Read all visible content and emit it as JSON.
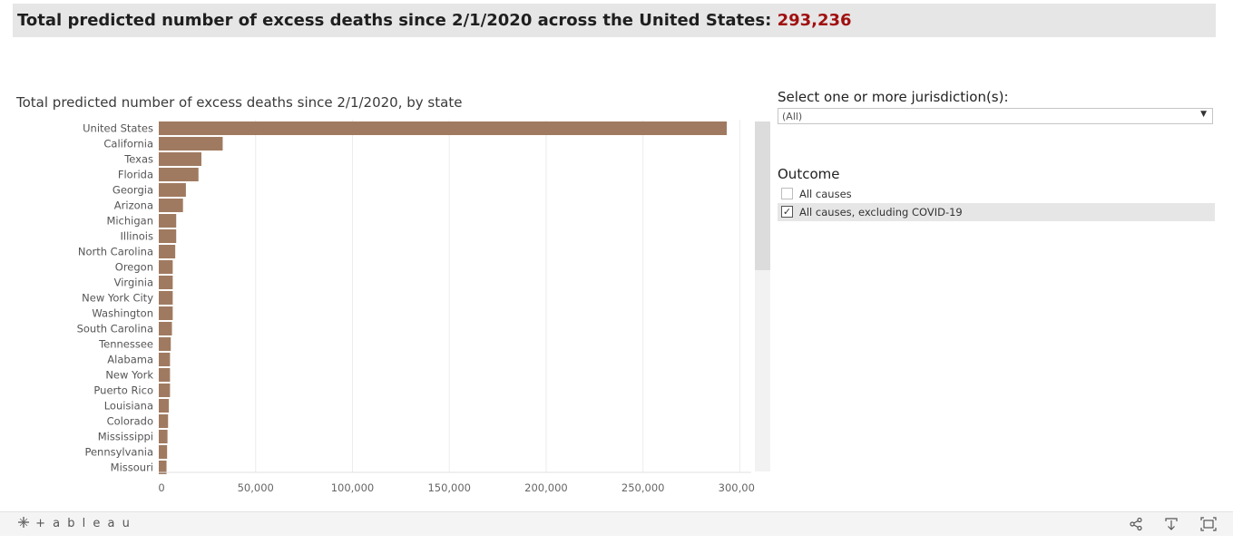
{
  "header": {
    "title": "Total predicted number of excess deaths since 2/1/2020 across the United States:",
    "total": "293,236"
  },
  "filters": {
    "jurisdiction_label": "Select one or more jurisdiction(s):",
    "jurisdiction_value": "(All)",
    "outcome_label": "Outcome",
    "outcome_options": [
      {
        "label": "All causes",
        "checked": false
      },
      {
        "label": "All causes, excluding COVID-19",
        "checked": true
      }
    ]
  },
  "footer": {
    "logo_text": "+ a b l e a u",
    "icons": [
      "share-icon",
      "download-icon",
      "fullscreen-icon"
    ]
  },
  "colors": {
    "bar": "#a07a60",
    "total_highlight": "#a11010",
    "banner_bg": "#e6e6e6"
  },
  "chart_data": {
    "type": "bar",
    "orientation": "horizontal",
    "title": "Total predicted number of excess deaths since 2/1/2020, by state",
    "categories": [
      "United States",
      "California",
      "Texas",
      "Florida",
      "Georgia",
      "Arizona",
      "Michigan",
      "Illinois",
      "North Carolina",
      "Oregon",
      "Virginia",
      "New York City",
      "Washington",
      "South Carolina",
      "Tennessee",
      "Alabama",
      "New York",
      "Puerto Rico",
      "Louisiana",
      "Colorado",
      "Mississippi",
      "Pennsylvania",
      "Missouri"
    ],
    "values": [
      293236,
      33000,
      22000,
      20500,
      14000,
      12500,
      9000,
      9000,
      8500,
      7200,
      7200,
      7200,
      7200,
      6800,
      6200,
      5800,
      5800,
      5800,
      5200,
      4800,
      4500,
      4300,
      4000
    ],
    "xlim": [
      0,
      305000
    ],
    "xticks": [
      0,
      50000,
      100000,
      150000,
      200000,
      250000,
      300000
    ],
    "xtick_labels": [
      "0",
      "50,000",
      "100,000",
      "150,000",
      "200,000",
      "250,000",
      "300,000"
    ],
    "grid": true,
    "xlabel": "",
    "ylabel": ""
  }
}
